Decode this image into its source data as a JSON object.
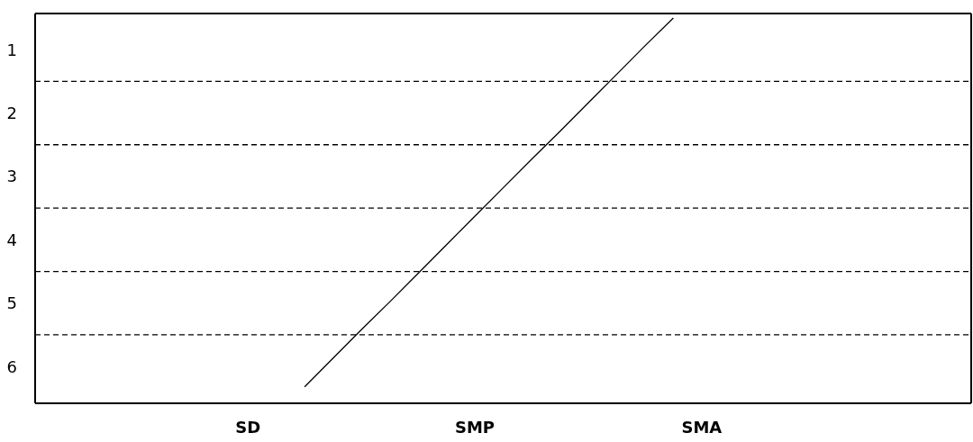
{
  "chart_data": {
    "type": "line",
    "categories": [
      null,
      null,
      null,
      null,
      null,
      null,
      null,
      "SD",
      null,
      null,
      null,
      null,
      null,
      null,
      null,
      "SMP",
      null,
      null,
      null,
      null,
      null,
      null,
      null,
      "SMA",
      null,
      null,
      null,
      null,
      null,
      null,
      null,
      null,
      null
    ],
    "series": [
      {
        "color": "#000000",
        "values": [
          null,
          null,
          null,
          null,
          null,
          null,
          null,
          null,
          null,
          6.32,
          5.87,
          5.42,
          4.98,
          4.53,
          4.08,
          3.63,
          3.18,
          2.73,
          2.29,
          1.84,
          1.39,
          0.94,
          0.5,
          null,
          null,
          null,
          null,
          null,
          null,
          null,
          null,
          null,
          null
        ]
      }
    ],
    "ylim": [
      6.58,
      0.43
    ],
    "yticks": [
      1,
      2,
      3,
      4,
      5,
      6
    ],
    "ref_lines": [
      {
        "axis": "y",
        "value": 1.5,
        "color": "#000000",
        "line_style": "dashed"
      },
      {
        "axis": "y",
        "value": 2.5,
        "color": "#000000",
        "line_style": "dashed"
      },
      {
        "axis": "y",
        "value": 3.5,
        "color": "#000000",
        "line_style": "dashed"
      },
      {
        "axis": "y",
        "value": 4.5,
        "color": "#000000",
        "line_style": "dashed"
      },
      {
        "axis": "y",
        "value": 5.5,
        "color": "#000000",
        "line_style": "dashed"
      }
    ],
    "marker": "none",
    "line_style": "solid",
    "grid": false
  }
}
